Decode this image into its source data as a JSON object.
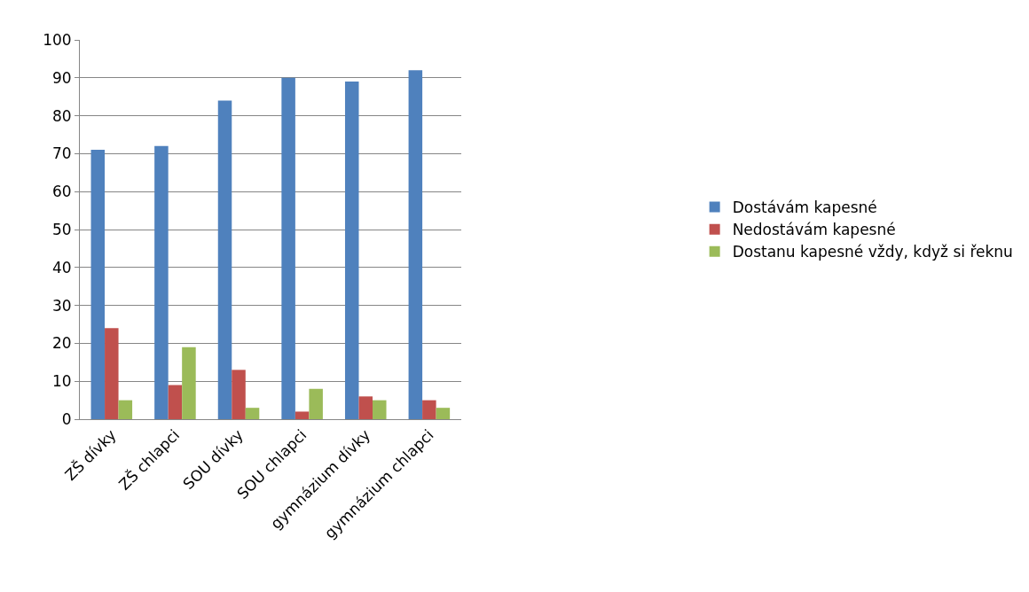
{
  "chart_data": {
    "type": "bar",
    "categories": [
      "ZŠ dívky",
      "ZŠ chlapci",
      "SOU dívky",
      "SOU chlapci",
      "gymnázium dívky",
      "gymnázium chlapci"
    ],
    "series": [
      {
        "name": "Dostávám kapesné",
        "color": "#4f81bd",
        "values": [
          71,
          72,
          84,
          90,
          89,
          92
        ]
      },
      {
        "name": "Nedostávám kapesné",
        "color": "#c0504d",
        "values": [
          24,
          9,
          13,
          2,
          6,
          5
        ]
      },
      {
        "name": "Dostanu kapesné vždy, když si řeknu",
        "color": "#9bbb59",
        "values": [
          5,
          19,
          3,
          8,
          5,
          3
        ]
      }
    ],
    "ylim": [
      0,
      100
    ],
    "yticks": [
      0,
      10,
      20,
      30,
      40,
      50,
      60,
      70,
      80,
      90,
      100
    ],
    "grid": "y",
    "legend": "right"
  }
}
